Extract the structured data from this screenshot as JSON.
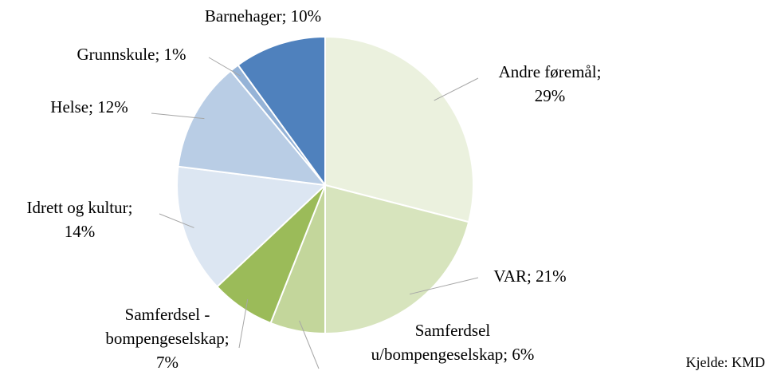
{
  "chart_data": {
    "type": "pie",
    "labels": [
      [
        "Andre føremål;",
        "29%"
      ],
      [
        "VAR; 21%"
      ],
      [
        "Samferdsel",
        "u/bompengeselskap; 6%"
      ],
      [
        "Samferdsel -",
        "bompengeselskap;",
        "7%"
      ],
      [
        "Idrett og kultur;",
        "14%"
      ],
      [
        "Helse; 12%"
      ],
      [
        "Grunnskule; 1%"
      ],
      [
        "Barnehager; 10%"
      ]
    ],
    "values": [
      29,
      21,
      6,
      7,
      14,
      12,
      1,
      10
    ],
    "colors": [
      "#ebf1de",
      "#d7e4bd",
      "#c3d69b",
      "#9bbb59",
      "#dce6f2",
      "#b9cde5",
      "#95b3d7",
      "#4f81bd"
    ],
    "source": "Kjelde: KMD"
  }
}
